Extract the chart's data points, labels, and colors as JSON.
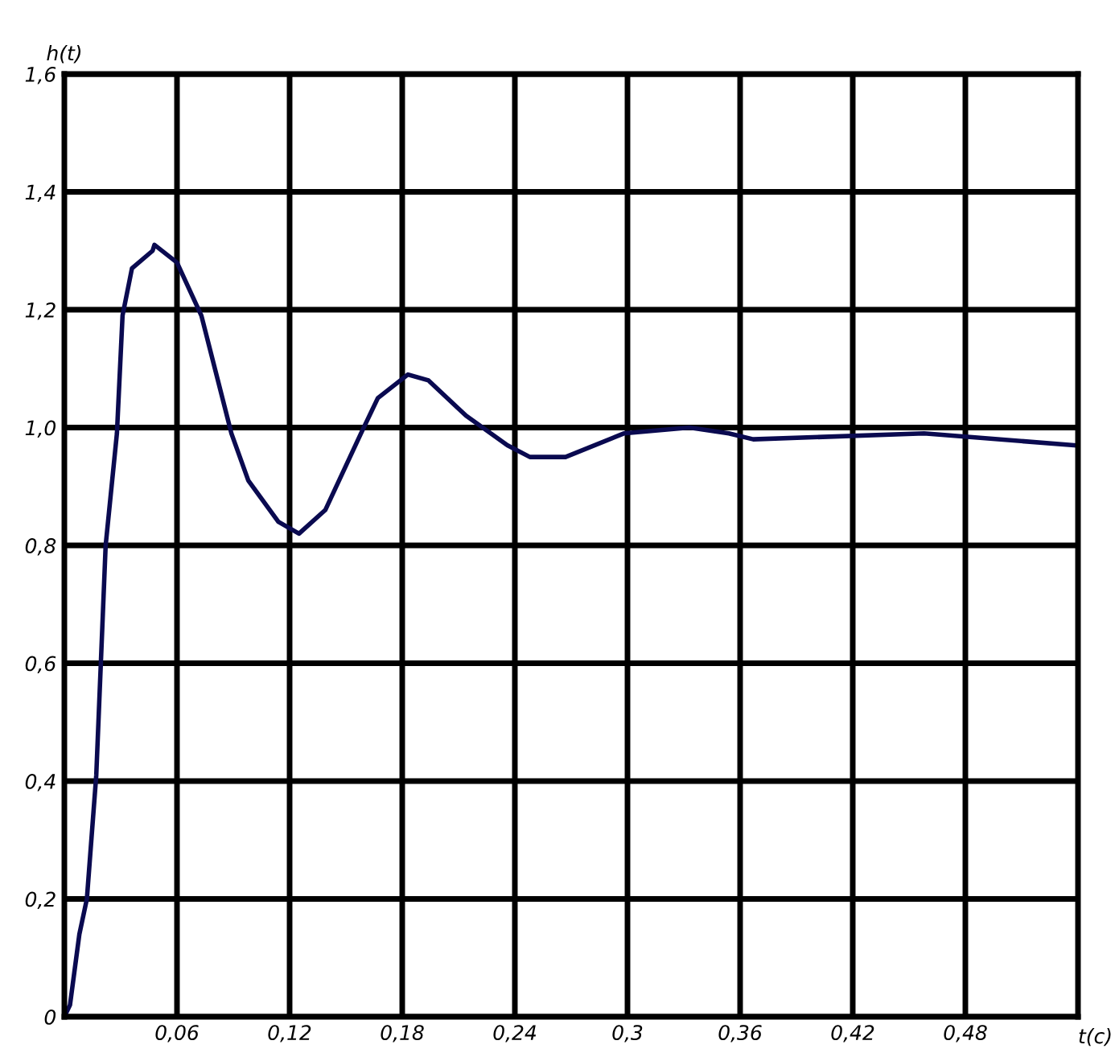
{
  "chart_data": {
    "type": "line",
    "xlabel": "t(c)",
    "ylabel": "h(t)",
    "x": [
      0,
      0.003,
      0.008,
      0.012,
      0.017,
      0.022,
      0.028,
      0.031,
      0.036,
      0.047,
      0.048,
      0.06,
      0.073,
      0.089,
      0.098,
      0.114,
      0.125,
      0.139,
      0.158,
      0.167,
      0.183,
      0.194,
      0.214,
      0.236,
      0.248,
      0.267,
      0.298,
      0.333,
      0.354,
      0.367,
      0.458,
      0.538
    ],
    "series": [
      {
        "color": "#0a0a50",
        "values": [
          0,
          0.02,
          0.14,
          0.2,
          0.41,
          0.8,
          0.99,
          1.19,
          1.27,
          1.3,
          1.31,
          1.28,
          1.19,
          0.99,
          0.91,
          0.84,
          0.82,
          0.86,
          0.99,
          1.05,
          1.09,
          1.08,
          1.02,
          0.97,
          0.95,
          0.95,
          0.99,
          1.0,
          0.99,
          0.98,
          0.99,
          0.97
        ]
      }
    ],
    "xlim": [
      0,
      0.54
    ],
    "ylim": [
      0,
      1.6
    ],
    "xticks": [
      {
        "value": 0.06,
        "label": "0,06"
      },
      {
        "value": 0.12,
        "label": "0,12"
      },
      {
        "value": 0.18,
        "label": "0,18"
      },
      {
        "value": 0.24,
        "label": "0,24"
      },
      {
        "value": 0.3,
        "label": "0,3"
      },
      {
        "value": 0.36,
        "label": "0,36"
      },
      {
        "value": 0.42,
        "label": "0,42"
      },
      {
        "value": 0.48,
        "label": "0,48"
      }
    ],
    "yticks": [
      0,
      {
        "value": 0.2,
        "label": "0,2"
      },
      {
        "value": 0.4,
        "label": "0,4"
      },
      {
        "value": 0.6,
        "label": "0,6"
      },
      {
        "value": 0.8,
        "label": "0,8"
      },
      {
        "value": 1.0,
        "label": "1,0"
      },
      {
        "value": 1.2,
        "label": "1,2"
      },
      {
        "value": 1.4,
        "label": "1,4"
      },
      {
        "value": 1.6,
        "label": "1,6"
      }
    ],
    "grid": true,
    "legend": false,
    "marker": "none",
    "line_style": "solid"
  }
}
